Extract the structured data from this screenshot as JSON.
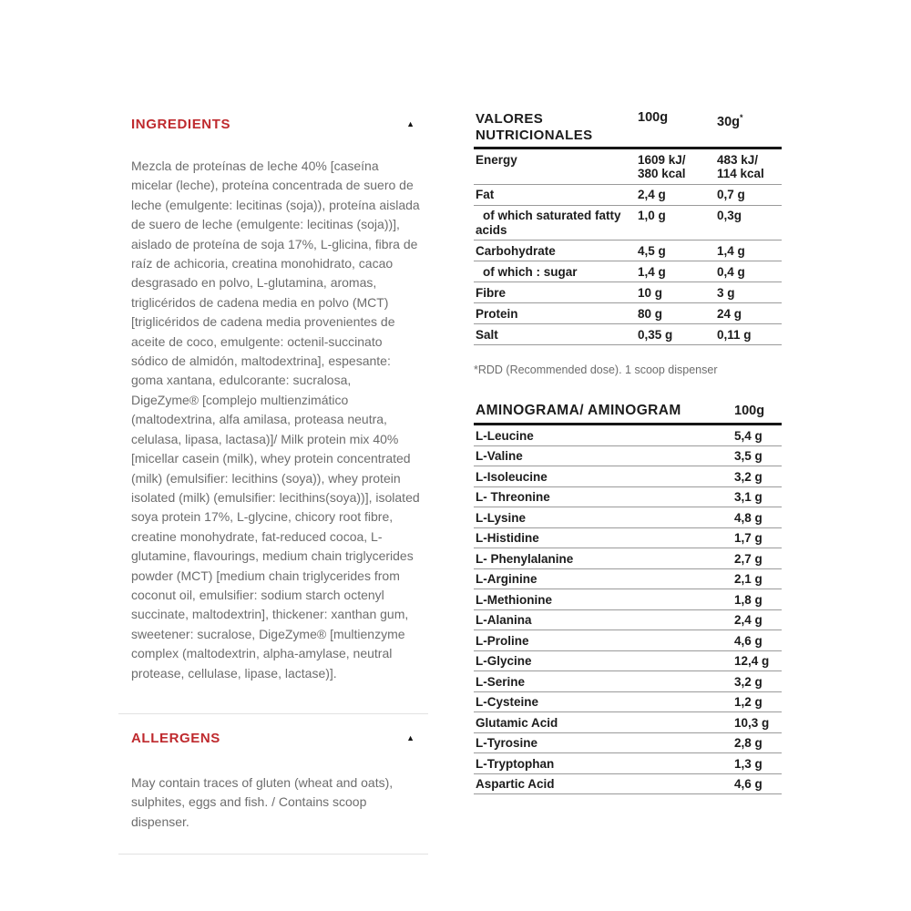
{
  "colors": {
    "accent": "#bf2a2e",
    "table_text": "#1c1c1c",
    "body_text": "#6d6d6d"
  },
  "icons": {
    "collapse_arrow": "▲"
  },
  "ingredients": {
    "title": "INGREDIENTS",
    "body": "Mezcla de proteínas de leche 40% [caseína micelar (leche), proteína concentrada de suero de leche (emulgente: lecitinas (soja)), proteína aislada de suero de leche (emulgente: lecitinas (soja))], aislado de proteína de soja 17%, L-glicina, fibra de raíz de achicoria, creatina monohidrato, cacao desgrasado en polvo, L-glutamina, aromas, triglicéridos de cadena media en polvo (MCT) [triglicéridos de cadena media provenientes de aceite de coco, emulgente: octenil-succinato sódico de almidón, maltodextrina], espesante: goma xantana, edulcorante: sucralosa, DigeZyme® [complejo multienzimático (maltodextrina, alfa amilasa, proteasa neutra, celulasa, lipasa, lactasa)]/ Milk protein mix 40% [micellar casein (milk), whey protein concentrated (milk) (emulsifier: lecithins (soya)), whey protein isolated (milk) (emulsifier: lecithins(soya))], isolated soya protein 17%, L-glycine, chicory root fibre, creatine monohydrate, fat-reduced cocoa, L-glutamine, flavourings, medium chain triglycerides powder (MCT) [medium chain triglycerides from coconut oil, emulsifier: sodium starch octenyl succinate, maltodextrin], thickener: xanthan gum, sweetener: sucralose, DigeZyme® [multienzyme complex (maltodextrin, alpha-amylase, neutral protease, cellulase, lipase, lactase)]."
  },
  "allergens": {
    "title": "ALLERGENS",
    "body": "May contain traces of gluten (wheat and oats), sulphites, eggs and fish. / Contains scoop dispenser."
  },
  "nutrition": {
    "title": "VALORES NUTRICIONALES",
    "columns": {
      "per100": "100g",
      "per30": "30g",
      "per30_marker": "*"
    },
    "rows": [
      {
        "label": "Energy",
        "v100": "1609 kJ/\n380 kcal",
        "v30": "483 kJ/\n114 kcal"
      },
      {
        "label": "Fat",
        "v100": "2,4 g",
        "v30": "0,7 g"
      },
      {
        "label": "of which saturated fatty acids",
        "v100": "1,0 g",
        "v30": "0,3g",
        "indent": true
      },
      {
        "label": "Carbohydrate",
        "v100": "4,5 g",
        "v30": "1,4 g"
      },
      {
        "label": "of which : sugar",
        "v100": "1,4 g",
        "v30": "0,4 g",
        "indent": true
      },
      {
        "label": "Fibre",
        "v100": "10 g",
        "v30": "3 g"
      },
      {
        "label": "Protein",
        "v100": "80 g",
        "v30": "24 g"
      },
      {
        "label": "Salt",
        "v100": "0,35 g",
        "v30": "0,11 g"
      }
    ],
    "footnote": "*RDD (Recommended dose). 1 scoop dispenser"
  },
  "aminogram": {
    "title": "AMINOGRAMA/ AMINOGRAM",
    "column": "100g",
    "rows": [
      {
        "label": "L-Leucine",
        "value": "5,4 g"
      },
      {
        "label": "L-Valine",
        "value": "3,5 g"
      },
      {
        "label": "L-Isoleucine",
        "value": "3,2 g"
      },
      {
        "label": "L- Threonine",
        "value": "3,1 g"
      },
      {
        "label": "L-Lysine",
        "value": "4,8 g"
      },
      {
        "label": "L-Histidine",
        "value": "1,7 g"
      },
      {
        "label": "L- Phenylalanine",
        "value": "2,7 g"
      },
      {
        "label": "L-Arginine",
        "value": "2,1 g"
      },
      {
        "label": "L-Methionine",
        "value": "1,8 g"
      },
      {
        "label": "L-Alanina",
        "value": "2,4 g"
      },
      {
        "label": "L-Proline",
        "value": "4,6 g"
      },
      {
        "label": "L-Glycine",
        "value": "12,4 g"
      },
      {
        "label": "L-Serine",
        "value": "3,2 g"
      },
      {
        "label": "L-Cysteine",
        "value": "1,2 g"
      },
      {
        "label": "Glutamic Acid",
        "value": "10,3 g"
      },
      {
        "label": "L-Tyrosine",
        "value": "2,8 g"
      },
      {
        "label": "L-Tryptophan",
        "value": "1,3 g"
      },
      {
        "label": "Aspartic Acid",
        "value": "4,6 g"
      }
    ]
  }
}
